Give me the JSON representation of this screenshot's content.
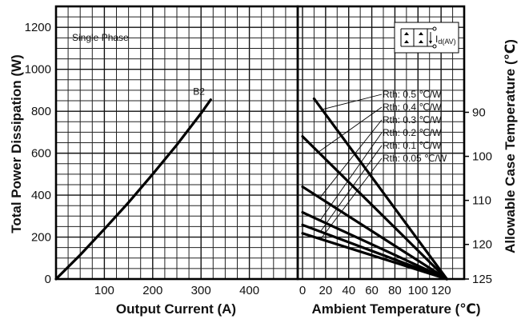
{
  "chart_data": [
    {
      "type": "line",
      "annotation": "Single Phase",
      "xlabel": "Output Current (A)",
      "ylabel": "Total Power Dissipation (W)",
      "xlim": [
        0,
        500
      ],
      "ylim": [
        0,
        1300
      ],
      "xticks": [
        "100",
        "200",
        "300",
        "400"
      ],
      "yticks": [
        "0",
        "200",
        "400",
        "600",
        "800",
        "1000",
        "1200"
      ],
      "grid": true,
      "series": [
        {
          "name": "B2",
          "x": [
            0,
            50,
            100,
            150,
            200,
            250,
            300,
            320
          ],
          "y": [
            0,
            115,
            238,
            365,
            500,
            640,
            790,
            855
          ]
        }
      ],
      "circuit_label": "I",
      "circuit_sub": "d(AV)"
    },
    {
      "type": "line",
      "xlabel": "Ambient Temperature (℃)",
      "ylabel": "Allowable Case Temperature (℃)",
      "xlim": [
        0,
        140
      ],
      "xticks": [
        "0",
        "20",
        "40",
        "60",
        "80",
        "100",
        "120"
      ],
      "right_yticks": [
        {
          "label": "90",
          "power": 795
        },
        {
          "label": "100",
          "power": 585
        },
        {
          "label": "110",
          "power": 375
        },
        {
          "label": "120",
          "power": 165
        },
        {
          "label": "125",
          "power": 0
        }
      ],
      "grid": true,
      "series": [
        {
          "name": "Rth: 0.5 ℃/W",
          "x": [
            10,
            125
          ],
          "y": [
            860,
            0
          ]
        },
        {
          "name": "Rth: 0.4 ℃/W",
          "x": [
            0,
            125
          ],
          "y": [
            680,
            0
          ]
        },
        {
          "name": "Rth: 0.3 ℃/W",
          "x": [
            0,
            125
          ],
          "y": [
            440,
            0
          ]
        },
        {
          "name": "Rth: 0.2 ℃/W",
          "x": [
            0,
            125
          ],
          "y": [
            318,
            0
          ]
        },
        {
          "name": "Rth: 0.1 ℃/W",
          "x": [
            0,
            125
          ],
          "y": [
            258,
            0
          ]
        },
        {
          "name": "Rth: 0.05 ℃/W",
          "x": [
            0,
            125
          ],
          "y": [
            218,
            0
          ]
        }
      ],
      "rth_labels": [
        "Rth: 0.5 ℃/W",
        "Rth: 0.4 ℃/W",
        "Rth: 0.3 ℃/W",
        "Rth: 0.2 ℃/W",
        "Rth: 0.1 ℃/W",
        "Rth: 0.05 ℃/W"
      ]
    }
  ]
}
